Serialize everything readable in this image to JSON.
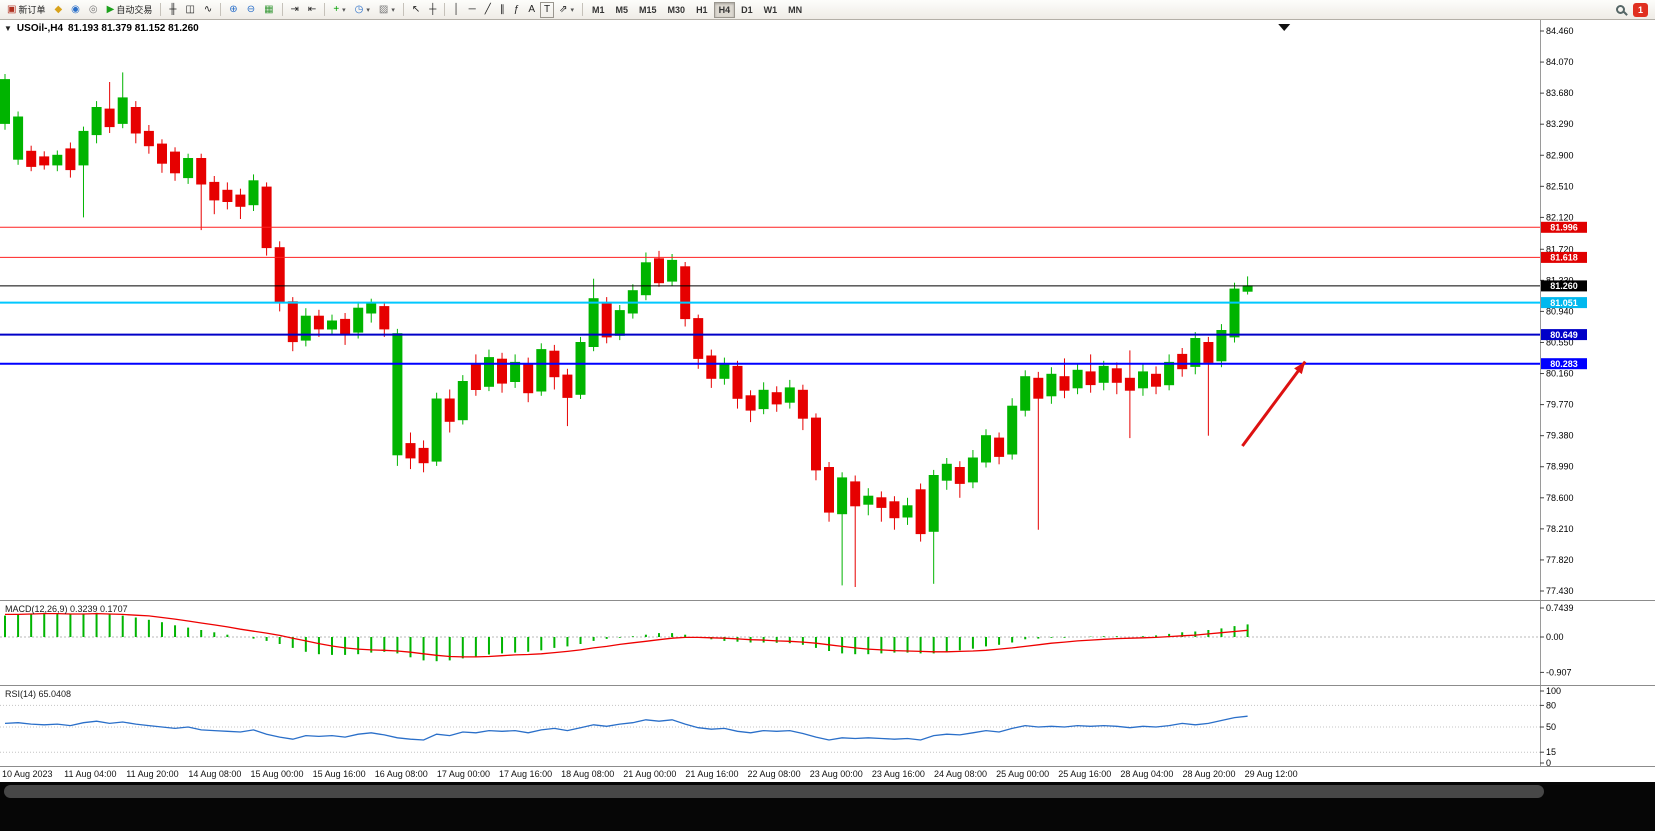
{
  "toolbar": {
    "caret": "▾",
    "notification_count": "1",
    "active_timeframe": "H4",
    "timeframes": [
      "M1",
      "M5",
      "M15",
      "M30",
      "H1",
      "H4",
      "D1",
      "W1",
      "MN"
    ],
    "groups": [
      {
        "items": [
          {
            "name": "new-order-button",
            "glyph": "▣",
            "fg": "#b03020",
            "label": "新订单"
          },
          {
            "name": "market-watch-icon-button",
            "glyph": "◆",
            "fg": "#d8a21a"
          },
          {
            "name": "community-icon-button",
            "glyph": "◉",
            "fg": "#2a6fc9"
          },
          {
            "name": "refresh-icon-button",
            "glyph": "◎",
            "fg": "#777777"
          },
          {
            "name": "autotrading-button",
            "glyph": "▶",
            "fg": "#1ca11c",
            "label": "自动交易"
          }
        ]
      },
      {
        "items": [
          {
            "name": "bar-chart-button",
            "glyph": "╫"
          },
          {
            "name": "candlestick-chart-button",
            "glyph": "◫"
          },
          {
            "name": "line-chart-button",
            "glyph": "∿"
          }
        ]
      },
      {
        "items": [
          {
            "name": "zoom-in-button",
            "glyph": "⊕",
            "fg": "#2a6fc9"
          },
          {
            "name": "zoom-out-button",
            "glyph": "⊖",
            "fg": "#2a6fc9"
          },
          {
            "name": "tile-windows-button",
            "glyph": "▦",
            "fg": "#3a9a3a"
          }
        ]
      },
      {
        "items": [
          {
            "name": "auto-scroll-button",
            "glyph": "⇥"
          },
          {
            "name": "chart-shift-button",
            "glyph": "⇤"
          }
        ]
      },
      {
        "items": [
          {
            "name": "indicators-button",
            "glyph": "+",
            "fg": "#00a000",
            "caret": true
          },
          {
            "name": "periods-button",
            "glyph": "◷",
            "fg": "#2a6fc9",
            "caret": true
          },
          {
            "name": "templates-button",
            "glyph": "▨",
            "fg": "#777777",
            "caret": true
          }
        ]
      },
      {
        "items": [
          {
            "name": "cursor-button",
            "glyph": "↖"
          },
          {
            "name": "crosshair-button",
            "glyph": "┼"
          }
        ]
      },
      {
        "items": [
          {
            "name": "vertical-line-button",
            "glyph": "│"
          },
          {
            "name": "horizontal-line-button",
            "glyph": "─"
          },
          {
            "name": "trendline-button",
            "glyph": "╱"
          },
          {
            "name": "equidistant-channel-button",
            "glyph": "∥"
          },
          {
            "name": "fibonacci-button",
            "glyph": "ƒ"
          },
          {
            "name": "text-button",
            "glyph": "A"
          },
          {
            "name": "text-label-button",
            "glyph": "T",
            "boxed": true
          },
          {
            "name": "arrows-button",
            "glyph": "⇗",
            "caret": true
          }
        ]
      }
    ]
  },
  "header": {
    "collapse_glyph": "▼",
    "symbol_period": "USOil-,H4",
    "ohlc": "81.193 81.379 81.152 81.260"
  },
  "chart_data": {
    "type": "candlestick",
    "symbol": "USOil-",
    "period": "H4",
    "current_bar": {
      "open": 81.193,
      "high": 81.379,
      "low": 81.152,
      "close": 81.26
    },
    "colors": {
      "up": "#00b400",
      "down": "#e60000"
    },
    "y_ticks": [
      "84.460",
      "84.070",
      "83.680",
      "83.290",
      "82.900",
      "82.510",
      "82.120",
      "81.720",
      "81.330",
      "80.940",
      "80.550",
      "80.160",
      "79.770",
      "79.380",
      "78.990",
      "78.600",
      "78.210",
      "77.820",
      "77.430"
    ],
    "x_labels": [
      "10 Aug 2023",
      "11 Aug 04:00",
      "11 Aug 20:00",
      "14 Aug 08:00",
      "15 Aug 00:00",
      "15 Aug 16:00",
      "16 Aug 08:00",
      "17 Aug 00:00",
      "17 Aug 16:00",
      "18 Aug 08:00",
      "21 Aug 00:00",
      "21 Aug 16:00",
      "22 Aug 08:00",
      "23 Aug 00:00",
      "23 Aug 16:00",
      "24 Aug 08:00",
      "25 Aug 00:00",
      "25 Aug 16:00",
      "28 Aug 04:00",
      "28 Aug 20:00",
      "29 Aug 12:00"
    ],
    "candles": [
      [
        83.3,
        83.92,
        83.22,
        83.85
      ],
      [
        82.85,
        83.45,
        82.78,
        83.38
      ],
      [
        82.95,
        83.02,
        82.7,
        82.76
      ],
      [
        82.88,
        82.95,
        82.72,
        82.78
      ],
      [
        82.78,
        82.96,
        82.7,
        82.9
      ],
      [
        82.98,
        83.06,
        82.62,
        82.72
      ],
      [
        82.78,
        83.26,
        82.12,
        83.2
      ],
      [
        83.16,
        83.58,
        83.05,
        83.5
      ],
      [
        83.48,
        83.82,
        83.18,
        83.26
      ],
      [
        83.3,
        83.94,
        83.24,
        83.62
      ],
      [
        83.5,
        83.58,
        83.05,
        83.18
      ],
      [
        83.2,
        83.28,
        82.92,
        83.02
      ],
      [
        83.04,
        83.1,
        82.68,
        82.8
      ],
      [
        82.94,
        83.0,
        82.58,
        82.68
      ],
      [
        82.62,
        82.92,
        82.54,
        82.86
      ],
      [
        82.86,
        82.92,
        81.96,
        82.54
      ],
      [
        82.56,
        82.64,
        82.16,
        82.34
      ],
      [
        82.46,
        82.56,
        82.22,
        82.32
      ],
      [
        82.4,
        82.48,
        82.1,
        82.26
      ],
      [
        82.28,
        82.66,
        82.2,
        82.58
      ],
      [
        82.5,
        82.56,
        81.64,
        81.74
      ],
      [
        81.74,
        81.82,
        80.94,
        81.06
      ],
      [
        81.06,
        81.12,
        80.44,
        80.56
      ],
      [
        80.58,
        80.98,
        80.5,
        80.88
      ],
      [
        80.88,
        80.96,
        80.62,
        80.72
      ],
      [
        80.72,
        80.9,
        80.64,
        80.82
      ],
      [
        80.84,
        80.92,
        80.52,
        80.66
      ],
      [
        80.68,
        81.06,
        80.6,
        80.98
      ],
      [
        80.92,
        81.1,
        80.8,
        81.04
      ],
      [
        81.0,
        81.06,
        80.62,
        80.72
      ],
      [
        79.14,
        80.72,
        79.0,
        80.66
      ],
      [
        79.28,
        79.42,
        78.96,
        79.1
      ],
      [
        79.22,
        79.32,
        78.92,
        79.04
      ],
      [
        79.06,
        79.92,
        79.0,
        79.84
      ],
      [
        79.84,
        79.96,
        79.42,
        79.56
      ],
      [
        79.58,
        80.14,
        79.52,
        80.06
      ],
      [
        80.28,
        80.4,
        79.88,
        79.96
      ],
      [
        80.0,
        80.46,
        79.94,
        80.36
      ],
      [
        80.34,
        80.42,
        79.92,
        80.04
      ],
      [
        80.06,
        80.4,
        79.98,
        80.3
      ],
      [
        80.28,
        80.36,
        79.8,
        79.92
      ],
      [
        79.94,
        80.54,
        79.88,
        80.46
      ],
      [
        80.44,
        80.52,
        79.96,
        80.12
      ],
      [
        80.14,
        80.22,
        79.5,
        79.86
      ],
      [
        79.9,
        80.62,
        79.84,
        80.55
      ],
      [
        80.5,
        81.35,
        80.44,
        81.1
      ],
      [
        81.05,
        81.12,
        80.54,
        80.62
      ],
      [
        80.64,
        81.02,
        80.58,
        80.95
      ],
      [
        80.92,
        81.28,
        80.85,
        81.2
      ],
      [
        81.15,
        81.68,
        81.08,
        81.55
      ],
      [
        81.6,
        81.7,
        81.25,
        81.3
      ],
      [
        81.32,
        81.66,
        81.26,
        81.58
      ],
      [
        81.5,
        81.56,
        80.75,
        80.85
      ],
      [
        80.85,
        80.9,
        80.22,
        80.35
      ],
      [
        80.38,
        80.46,
        79.98,
        80.1
      ],
      [
        80.1,
        80.36,
        80.02,
        80.28
      ],
      [
        80.25,
        80.32,
        79.72,
        79.85
      ],
      [
        79.88,
        79.95,
        79.55,
        79.7
      ],
      [
        79.72,
        80.05,
        79.65,
        79.95
      ],
      [
        79.92,
        80.0,
        79.68,
        79.78
      ],
      [
        79.8,
        80.08,
        79.72,
        79.98
      ],
      [
        79.95,
        80.02,
        79.45,
        79.6
      ],
      [
        79.6,
        79.66,
        78.82,
        78.95
      ],
      [
        78.98,
        79.05,
        78.3,
        78.42
      ],
      [
        78.4,
        78.92,
        77.5,
        78.85
      ],
      [
        78.8,
        78.88,
        77.48,
        78.5
      ],
      [
        78.52,
        78.72,
        78.38,
        78.62
      ],
      [
        78.6,
        78.68,
        78.3,
        78.48
      ],
      [
        78.55,
        78.62,
        78.2,
        78.35
      ],
      [
        78.36,
        78.6,
        78.26,
        78.5
      ],
      [
        78.7,
        78.78,
        78.05,
        78.15
      ],
      [
        78.18,
        78.95,
        77.52,
        78.88
      ],
      [
        78.82,
        79.1,
        78.7,
        79.02
      ],
      [
        78.98,
        79.06,
        78.6,
        78.78
      ],
      [
        78.8,
        79.2,
        78.72,
        79.1
      ],
      [
        79.05,
        79.46,
        78.98,
        79.38
      ],
      [
        79.35,
        79.42,
        79.02,
        79.12
      ],
      [
        79.15,
        79.85,
        79.08,
        79.75
      ],
      [
        79.7,
        80.2,
        79.62,
        80.12
      ],
      [
        80.1,
        80.18,
        78.2,
        79.85
      ],
      [
        79.88,
        80.24,
        79.78,
        80.15
      ],
      [
        80.12,
        80.35,
        79.85,
        79.95
      ],
      [
        79.98,
        80.28,
        79.9,
        80.2
      ],
      [
        80.18,
        80.4,
        79.92,
        80.02
      ],
      [
        80.05,
        80.32,
        79.95,
        80.25
      ],
      [
        80.22,
        80.3,
        79.9,
        80.05
      ],
      [
        80.1,
        80.45,
        79.35,
        79.95
      ],
      [
        79.98,
        80.28,
        79.88,
        80.18
      ],
      [
        80.15,
        80.25,
        79.9,
        80.0
      ],
      [
        80.02,
        80.4,
        79.95,
        80.3
      ],
      [
        80.4,
        80.48,
        80.12,
        80.22
      ],
      [
        80.25,
        80.68,
        80.15,
        80.6
      ],
      [
        80.55,
        80.62,
        79.38,
        80.3
      ],
      [
        80.32,
        80.78,
        80.24,
        80.7
      ],
      [
        80.62,
        81.3,
        80.55,
        81.22
      ],
      [
        81.193,
        81.379,
        81.152,
        81.26
      ]
    ],
    "hlines": [
      {
        "price": 81.996,
        "color": "#ff2020",
        "width": 1,
        "badge_bg": "#e00000",
        "badge_fg": "#ffffff",
        "label": "81.996"
      },
      {
        "price": 81.618,
        "color": "#ff2020",
        "width": 1,
        "badge_bg": "#e00000",
        "badge_fg": "#ffffff",
        "label": "81.618"
      },
      {
        "price": 81.051,
        "color": "#00c8ff",
        "width": 2,
        "badge_bg": "#00b8ee",
        "badge_fg": "#ffffff",
        "label": "81.051"
      },
      {
        "price": 80.649,
        "color": "#0000c8",
        "width": 2,
        "badge_bg": "#0000c8",
        "badge_fg": "#ffffff",
        "label": "80.649"
      },
      {
        "price": 80.283,
        "color": "#0000ff",
        "width": 2,
        "badge_bg": "#0000ff",
        "badge_fg": "#ffffff",
        "label": "80.283"
      }
    ],
    "current_price_line": {
      "price": 81.26,
      "color": "#000000",
      "badge_bg": "#000000",
      "badge_fg": "#ffffff",
      "label": "81.260"
    },
    "arrow": {
      "from_index": 94.6,
      "from_price": 79.25,
      "to_index": 99.4,
      "to_price": 80.31,
      "color": "#dd1111"
    },
    "shift_marker_index": 97.8,
    "macd": {
      "label_full": "MACD(12,26,9) 0.3239 0.1707",
      "axis": [
        "0.7439",
        "0.00",
        "-0.907"
      ],
      "hist_color": "#00b400",
      "signal_color": "#ee0000",
      "hist": [
        0.55,
        0.58,
        0.6,
        0.62,
        0.6,
        0.58,
        0.6,
        0.62,
        0.58,
        0.55,
        0.5,
        0.44,
        0.38,
        0.3,
        0.24,
        0.18,
        0.12,
        0.06,
        0.0,
        -0.04,
        -0.1,
        -0.18,
        -0.28,
        -0.38,
        -0.44,
        -0.46,
        -0.46,
        -0.44,
        -0.4,
        -0.38,
        -0.42,
        -0.52,
        -0.6,
        -0.62,
        -0.6,
        -0.55,
        -0.5,
        -0.45,
        -0.42,
        -0.4,
        -0.38,
        -0.34,
        -0.28,
        -0.24,
        -0.18,
        -0.1,
        -0.05,
        -0.02,
        0.02,
        0.06,
        0.1,
        0.1,
        0.06,
        0.0,
        -0.06,
        -0.1,
        -0.12,
        -0.14,
        -0.14,
        -0.15,
        -0.16,
        -0.2,
        -0.28,
        -0.36,
        -0.42,
        -0.44,
        -0.44,
        -0.42,
        -0.4,
        -0.4,
        -0.42,
        -0.42,
        -0.38,
        -0.34,
        -0.3,
        -0.24,
        -0.2,
        -0.14,
        -0.06,
        -0.04,
        -0.02,
        -0.02,
        0.0,
        0.01,
        0.02,
        0.02,
        0.0,
        0.02,
        0.04,
        0.08,
        0.12,
        0.14,
        0.18,
        0.22,
        0.28,
        0.3239
      ],
      "signal": [
        0.58,
        0.58,
        0.59,
        0.6,
        0.6,
        0.59,
        0.59,
        0.6,
        0.59,
        0.58,
        0.56,
        0.54,
        0.5,
        0.46,
        0.41,
        0.36,
        0.31,
        0.26,
        0.2,
        0.15,
        0.1,
        0.04,
        -0.03,
        -0.1,
        -0.17,
        -0.23,
        -0.28,
        -0.31,
        -0.33,
        -0.34,
        -0.36,
        -0.39,
        -0.43,
        -0.47,
        -0.5,
        -0.51,
        -0.51,
        -0.5,
        -0.48,
        -0.46,
        -0.45,
        -0.43,
        -0.4,
        -0.37,
        -0.33,
        -0.28,
        -0.24,
        -0.19,
        -0.15,
        -0.11,
        -0.07,
        -0.03,
        -0.01,
        -0.01,
        -0.02,
        -0.03,
        -0.05,
        -0.07,
        -0.08,
        -0.1,
        -0.11,
        -0.13,
        -0.16,
        -0.2,
        -0.24,
        -0.28,
        -0.31,
        -0.33,
        -0.35,
        -0.36,
        -0.37,
        -0.38,
        -0.38,
        -0.37,
        -0.36,
        -0.34,
        -0.31,
        -0.28,
        -0.24,
        -0.2,
        -0.16,
        -0.13,
        -0.1,
        -0.08,
        -0.06,
        -0.04,
        -0.03,
        -0.02,
        -0.01,
        0.01,
        0.03,
        0.05,
        0.08,
        0.11,
        0.14,
        0.1707
      ]
    },
    "rsi": {
      "label_full": "RSI(14) 65.0408",
      "axis": [
        "100",
        "80",
        "50",
        "15",
        "0"
      ],
      "levels": [
        80,
        50,
        15
      ],
      "color": "#2a6fc9",
      "values": [
        55,
        56,
        54,
        53,
        54,
        52,
        56,
        58,
        55,
        57,
        54,
        52,
        50,
        48,
        50,
        46,
        45,
        44,
        43,
        46,
        40,
        36,
        33,
        38,
        37,
        38,
        36,
        40,
        42,
        39,
        35,
        33,
        32,
        40,
        38,
        43,
        42,
        45,
        44,
        45,
        42,
        46,
        48,
        45,
        49,
        53,
        51,
        54,
        56,
        60,
        58,
        60,
        54,
        49,
        47,
        48,
        44,
        42,
        45,
        44,
        45,
        41,
        36,
        32,
        35,
        34,
        35,
        34,
        33,
        34,
        32,
        38,
        40,
        39,
        42,
        45,
        43,
        48,
        52,
        50,
        51,
        50,
        52,
        51,
        52,
        51,
        49,
        51,
        50,
        52,
        55,
        53,
        55,
        59,
        63,
        65
      ]
    }
  }
}
